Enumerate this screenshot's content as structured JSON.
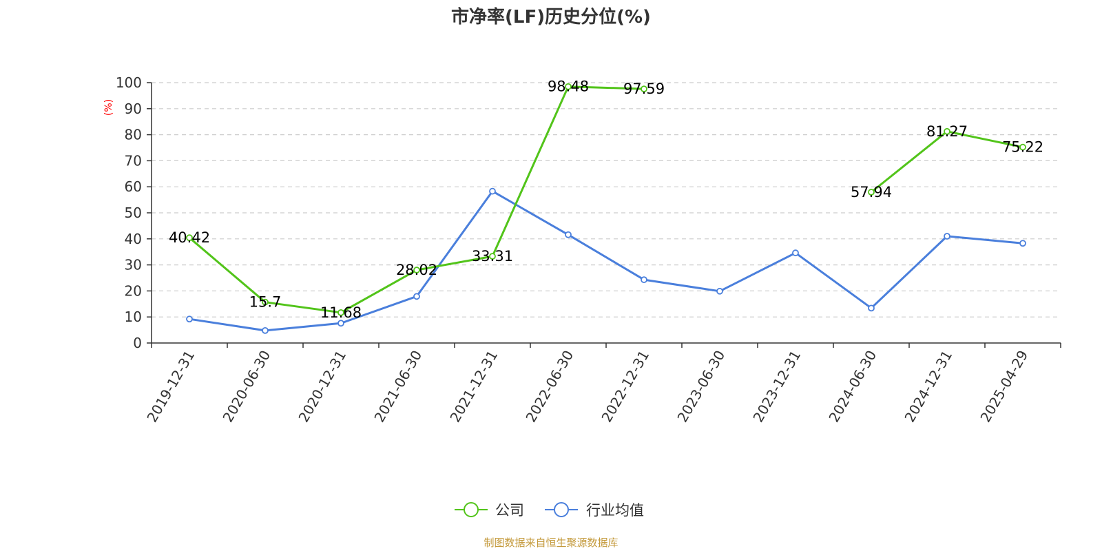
{
  "chart_data": {
    "type": "line",
    "title": "市净率(LF)历史分位(%)",
    "ylabel": "(%)",
    "ylim": [
      0,
      100
    ],
    "yticks": [
      0,
      10,
      20,
      30,
      40,
      50,
      60,
      70,
      80,
      90,
      100
    ],
    "categories": [
      "2019-12-31",
      "2020-06-30",
      "2020-12-31",
      "2021-06-30",
      "2021-12-31",
      "2022-06-30",
      "2022-12-31",
      "2023-06-30",
      "2023-12-31",
      "2024-06-30",
      "2024-12-31",
      "2025-04-29"
    ],
    "series": [
      {
        "name": "公司",
        "color": "#52c41a",
        "values": [
          40.42,
          15.7,
          11.68,
          28.02,
          33.31,
          98.48,
          97.59,
          null,
          null,
          57.94,
          81.27,
          75.22
        ],
        "labels": [
          "40.42",
          "15.7",
          "11.68",
          "28.02",
          "33.31",
          "98.48",
          "97.59",
          "",
          "",
          "57.94",
          "81.27",
          "75.22"
        ]
      },
      {
        "name": "行业均值",
        "color": "#4a7fdc",
        "values": [
          9.2,
          4.8,
          7.6,
          17.9,
          58.3,
          41.6,
          24.3,
          19.9,
          34.6,
          13.4,
          41.0,
          38.3
        ]
      }
    ],
    "grid": true,
    "legend_position": "bottom-center"
  },
  "source_text": "制图数据来自恒生聚源数据库"
}
